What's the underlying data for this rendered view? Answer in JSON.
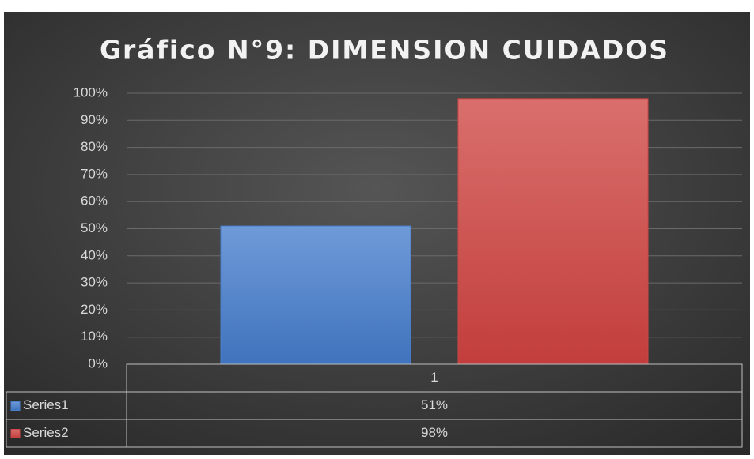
{
  "chart_data": {
    "type": "bar",
    "title": "Gráfico N°9: DIMENSION CUIDADOS",
    "categories": [
      "1"
    ],
    "series": [
      {
        "name": "Series1",
        "color": "#4a7fcb",
        "values": [
          51
        ],
        "value_labels": [
          "51%"
        ]
      },
      {
        "name": "Series2",
        "color": "#cc4745",
        "values": [
          98
        ],
        "value_labels": [
          "98%"
        ]
      }
    ],
    "ylim": [
      0,
      100
    ],
    "yticks": [
      {
        "value": 0,
        "label": "0%"
      },
      {
        "value": 10,
        "label": "10%"
      },
      {
        "value": 20,
        "label": "20%"
      },
      {
        "value": 30,
        "label": "30%"
      },
      {
        "value": 40,
        "label": "40%"
      },
      {
        "value": 50,
        "label": "50%"
      },
      {
        "value": 60,
        "label": "60%"
      },
      {
        "value": 70,
        "label": "70%"
      },
      {
        "value": 80,
        "label": "80%"
      },
      {
        "value": 90,
        "label": "90%"
      },
      {
        "value": 100,
        "label": "100%"
      }
    ],
    "grid": true,
    "legend": "table"
  }
}
